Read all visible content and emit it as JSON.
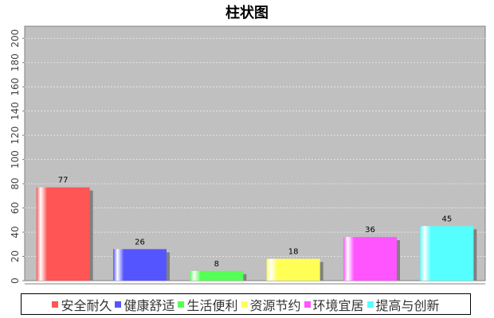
{
  "chart_data": {
    "type": "bar",
    "title": "柱状图",
    "categories": [
      "安全耐久",
      "健康舒适",
      "生活便利",
      "资源节约",
      "环境宜居",
      "提高与创新"
    ],
    "values": [
      77,
      26,
      8,
      18,
      36,
      45
    ],
    "colors": [
      "#ff5555",
      "#5555ff",
      "#55ff55",
      "#ffff55",
      "#ff55ff",
      "#55ffff"
    ],
    "xlabel": "",
    "ylabel": "",
    "ylim": [
      0,
      210
    ],
    "yticks": [
      0,
      20,
      40,
      60,
      80,
      100,
      120,
      140,
      160,
      180,
      200
    ],
    "grid": true,
    "legend": "bottom",
    "plot_background": "#c0c0c0",
    "data_labels": true
  }
}
